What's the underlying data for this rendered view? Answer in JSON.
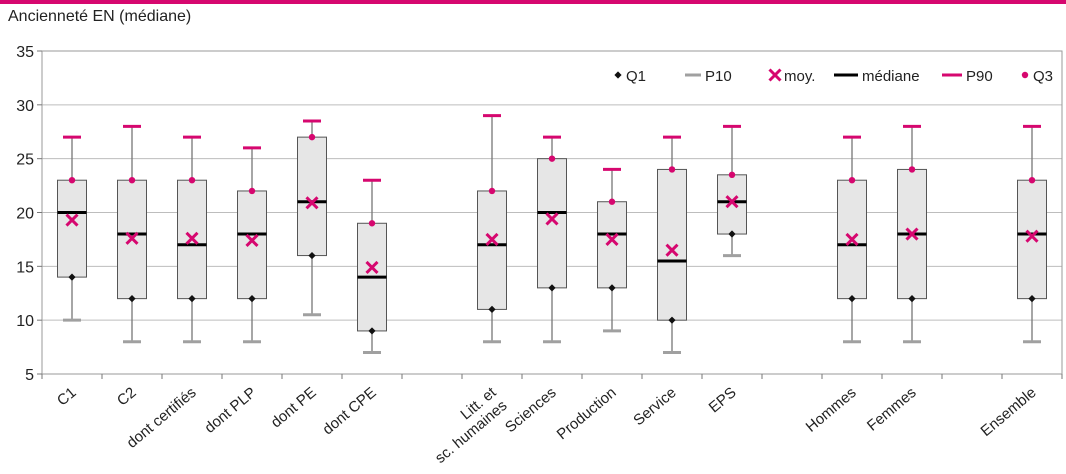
{
  "colors": {
    "accent": "#d6076f",
    "box_fill": "#e6e6e6",
    "p10": "#a0a0a0",
    "grid": "#bdbdbd"
  },
  "chart_data": {
    "type": "box",
    "title": "",
    "ylabel": "Ancienneté EN (médiane)",
    "ylim": [
      5,
      35
    ],
    "yticks": [
      5,
      10,
      15,
      20,
      25,
      30,
      35
    ],
    "grid": "horizontal",
    "legend_position": "top-right",
    "legend": [
      "Q1",
      "P10",
      "moy.",
      "médiane",
      "P90",
      "Q3"
    ],
    "categories": [
      {
        "label": "C1",
        "p10": 10,
        "q1": 14,
        "median": 20,
        "q3": 23,
        "p90": 27,
        "mean": 19.3
      },
      {
        "label": "C2",
        "p10": 8,
        "q1": 12,
        "median": 18,
        "q3": 23,
        "p90": 28,
        "mean": 17.6
      },
      {
        "label": "dont certifiés",
        "p10": 8,
        "q1": 12,
        "median": 17,
        "q3": 23,
        "p90": 27,
        "mean": 17.6
      },
      {
        "label": "dont PLP",
        "p10": 8,
        "q1": 12,
        "median": 18,
        "q3": 22,
        "p90": 26,
        "mean": 17.4
      },
      {
        "label": "dont PE",
        "p10": 10.5,
        "q1": 16,
        "median": 21,
        "q3": 27,
        "p90": 28.5,
        "mean": 20.9
      },
      {
        "label": "dont CPE",
        "p10": 7,
        "q1": 9,
        "median": 14,
        "q3": 19,
        "p90": 23,
        "mean": 14.9
      },
      {
        "label": "",
        "p10": null,
        "q1": null,
        "median": null,
        "q3": null,
        "p90": null,
        "mean": null
      },
      {
        "label": "Litt. et sc. humaines",
        "p10": 8,
        "q1": 11,
        "median": 17,
        "q3": 22,
        "p90": 29,
        "mean": 17.5
      },
      {
        "label": "Sciences",
        "p10": 8,
        "q1": 13,
        "median": 20,
        "q3": 25,
        "p90": 27,
        "mean": 19.4
      },
      {
        "label": "Production",
        "p10": 9,
        "q1": 13,
        "median": 18,
        "q3": 21,
        "p90": 24,
        "mean": 17.5
      },
      {
        "label": "Service",
        "p10": 7,
        "q1": 10,
        "median": 15.5,
        "q3": 24,
        "p90": 27,
        "mean": 16.5
      },
      {
        "label": "EPS",
        "p10": 16,
        "q1": 18,
        "median": 21,
        "q3": 23.5,
        "p90": 28,
        "mean": 21
      },
      {
        "label": "",
        "p10": null,
        "q1": null,
        "median": null,
        "q3": null,
        "p90": null,
        "mean": null
      },
      {
        "label": "Hommes",
        "p10": 8,
        "q1": 12,
        "median": 17,
        "q3": 23,
        "p90": 27,
        "mean": 17.5
      },
      {
        "label": "Femmes",
        "p10": 8,
        "q1": 12,
        "median": 18,
        "q3": 24,
        "p90": 28,
        "mean": 18
      },
      {
        "label": "",
        "p10": null,
        "q1": null,
        "median": null,
        "q3": null,
        "p90": null,
        "mean": null
      },
      {
        "label": "Ensemble",
        "p10": 8,
        "q1": 12,
        "median": 18,
        "q3": 23,
        "p90": 28,
        "mean": 17.8
      }
    ]
  }
}
